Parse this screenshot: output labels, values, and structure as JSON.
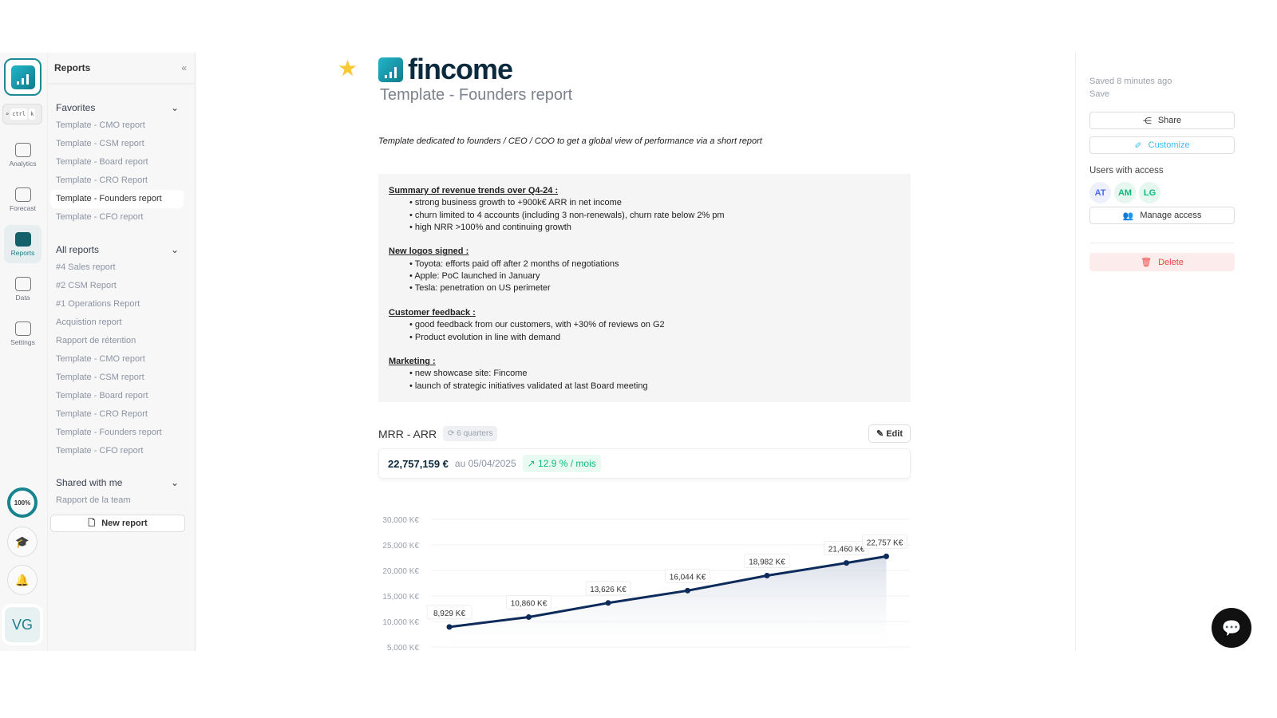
{
  "rail": {
    "search_keys": [
      "ctrl",
      "k"
    ],
    "items": [
      {
        "label": "Analytics"
      },
      {
        "label": "Forecast"
      },
      {
        "label": "Reports"
      },
      {
        "label": "Data"
      },
      {
        "label": "Settings"
      }
    ],
    "progress": "100%",
    "avatar": "VG"
  },
  "sidebar": {
    "title": "Reports",
    "favorites": {
      "label": "Favorites",
      "items": [
        "Template - CMO report",
        "Template - CSM report",
        "Template - Board report",
        "Template - CRO Report",
        "Template - Founders report",
        "Template - CFO report"
      ]
    },
    "all": {
      "label": "All reports",
      "items": [
        "#4 Sales report",
        "#2 CSM Report",
        "#1 Operations Report",
        "Acquistion report",
        "Rapport de rétention",
        "Template - CMO report",
        "Template - CSM report",
        "Template - Board report",
        "Template - CRO Report",
        "Template - Founders report",
        "Template - CFO report"
      ]
    },
    "shared": {
      "label": "Shared with me",
      "items": [
        "Rapport de la team"
      ]
    },
    "new_report": "New report"
  },
  "main": {
    "brand": "fincome",
    "title": "Template - Founders report",
    "description": "Template dedicated to founders / CEO / COO to get a global view of performance via a short report",
    "notes": [
      {
        "heading": "Summary of revenue trends over Q4-24 :",
        "items": [
          "strong business growth to +900k€ ARR in net income",
          "churn limited to 4 accounts (including 3 non-renewals), churn rate below 2% pm",
          "high NRR >100% and continuing growth"
        ]
      },
      {
        "heading": "New logos signed :",
        "items": [
          "Toyota: efforts paid off after 2 months of negotiations",
          "Apple: PoC launched in January",
          "Tesla: penetration on US perimeter"
        ]
      },
      {
        "heading": "Customer feedback :",
        "items": [
          "good feedback from our customers, with +30% of reviews on G2",
          "Product evolution in line with demand"
        ]
      },
      {
        "heading": "Marketing :",
        "items": [
          "new showcase site: Fincome",
          "launch of strategic initiatives validated at last Board meeting"
        ]
      }
    ],
    "widget": {
      "title": "MRR - ARR",
      "period": "6 quarters",
      "edit": "Edit",
      "value": "22,757,159 €",
      "date": "au 05/04/2025",
      "trend": "12.9 % / mois"
    }
  },
  "chart_data": {
    "type": "area",
    "yticks": [
      "5,000 K€",
      "10,000 K€",
      "15,000 K€",
      "20,000 K€",
      "25,000 K€",
      "30,000 K€"
    ],
    "ylim": [
      5000,
      30000
    ],
    "values": [
      8929,
      10860,
      13626,
      16044,
      18982,
      21460,
      22757
    ],
    "labels": [
      "8,929 K€",
      "10,860 K€",
      "13,626 K€",
      "16,044 K€",
      "18,982 K€",
      "21,460 K€",
      "22,757 K€"
    ],
    "grid": true,
    "color": "#0c2a5a"
  },
  "panel": {
    "saved": "Saved 8 minutes ago",
    "save": "Save",
    "share": "Share",
    "customize": "Customize",
    "users_label": "Users with access",
    "users": [
      "AT",
      "AM",
      "LG"
    ],
    "manage": "Manage access",
    "delete": "Delete"
  },
  "colors": {
    "accent": "#1b8a95",
    "brand_dark": "#0c2a3d",
    "danger": "#ef4444",
    "success": "#10b981"
  }
}
